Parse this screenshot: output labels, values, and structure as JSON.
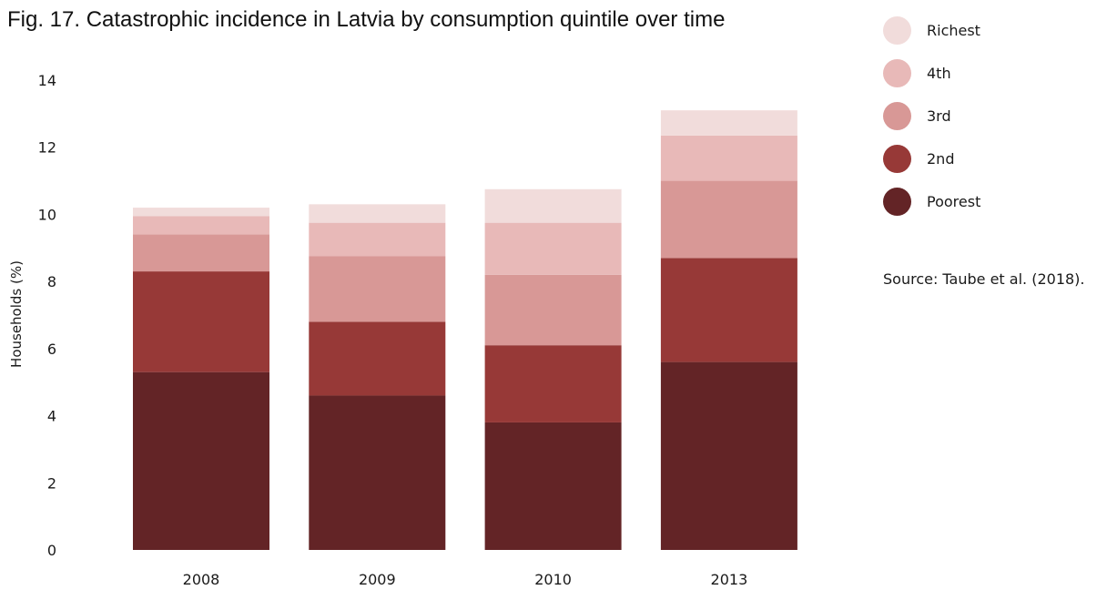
{
  "chart_data": {
    "type": "bar",
    "stacked": true,
    "title": "Fig. 17. Catastrophic incidence in Latvia by consumption quintile over time",
    "xlabel": "",
    "ylabel": "Households (%)",
    "ylim": [
      0,
      14
    ],
    "yticks": [
      0,
      2,
      4,
      6,
      8,
      10,
      12,
      14
    ],
    "categories": [
      "2008",
      "2009",
      "2010",
      "2013"
    ],
    "series": [
      {
        "name": "Poorest",
        "color": "#632426",
        "values": [
          5.3,
          4.6,
          3.8,
          5.6
        ]
      },
      {
        "name": "2nd",
        "color": "#973937",
        "values": [
          3.0,
          2.2,
          2.3,
          3.1
        ]
      },
      {
        "name": "3rd",
        "color": "#d89896",
        "values": [
          1.1,
          1.95,
          2.1,
          2.3
        ]
      },
      {
        "name": "4th",
        "color": "#e8b9b8",
        "values": [
          0.55,
          1.0,
          1.55,
          1.35
        ]
      },
      {
        "name": "Richest",
        "color": "#f1dcdb",
        "values": [
          0.25,
          0.55,
          1.0,
          0.75
        ]
      }
    ],
    "legend_order": [
      "Richest",
      "4th",
      "3rd",
      "2nd",
      "Poorest"
    ],
    "legend_position": "right",
    "grid": false
  },
  "source": "Source: Taube et al. (2018)."
}
